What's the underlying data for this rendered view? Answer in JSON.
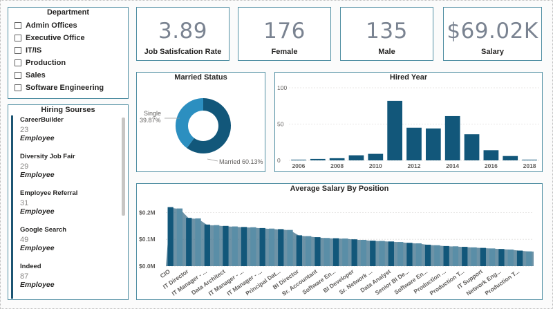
{
  "department": {
    "title": "Department",
    "items": [
      "Admin Offices",
      "Executive Office",
      "IT/IS",
      "Production",
      "Sales",
      "Software Engineering"
    ]
  },
  "hiring_sources": {
    "title": "Hiring Sourses",
    "items": [
      {
        "name": "CareerBuilder",
        "count": "23",
        "sub": "Employee"
      },
      {
        "name": "Diversity Job Fair",
        "count": "29",
        "sub": "Employee"
      },
      {
        "name": "Employee Referral",
        "count": "31",
        "sub": "Employee"
      },
      {
        "name": "Google Search",
        "count": "49",
        "sub": "Employee"
      },
      {
        "name": "Indeed",
        "count": "87",
        "sub": "Employee"
      }
    ]
  },
  "kpis": [
    {
      "value": "3.89",
      "label": "Job Satisfcation Rate"
    },
    {
      "value": "176",
      "label": "Female"
    },
    {
      "value": "135",
      "label": "Male"
    },
    {
      "value": "$69.02K",
      "label": "Salary"
    }
  ],
  "colors": {
    "dark": "#12577a",
    "light": "#2c8fc0",
    "bar_light": "#5a8ea7",
    "area": "#3c6f89",
    "border": "#4f8ea2"
  },
  "chart_data": [
    {
      "type": "pie",
      "title": "Married Status",
      "categories": [
        "Married",
        "Single"
      ],
      "values": [
        60.13,
        39.87
      ],
      "labels": [
        "Married 60.13%",
        "Single",
        "39.87%"
      ]
    },
    {
      "type": "bar",
      "title": "Hired Year",
      "categories": [
        "2006",
        "2007",
        "2008",
        "2009",
        "2010",
        "2011",
        "2012",
        "2013",
        "2014",
        "2015",
        "2016",
        "2017",
        "2018"
      ],
      "values": [
        1,
        2,
        3,
        7,
        9,
        82,
        45,
        44,
        61,
        36,
        14,
        6,
        1
      ],
      "x_tick_labels": [
        "2006",
        "2008",
        "2010",
        "2012",
        "2014",
        "2016",
        "2018"
      ],
      "y_tick_labels": [
        "0",
        "50",
        "100"
      ],
      "ylim": [
        0,
        100
      ]
    },
    {
      "type": "bar",
      "title": "Average Salary By Position",
      "categories": [
        "CIO",
        "",
        "IT Director",
        "",
        "IT Manager - ...",
        "",
        "Data Architect",
        "",
        "IT Manager - ...",
        "",
        "IT Manager - ...",
        "",
        "Principal Dat...",
        "",
        "BI Director",
        "",
        "Sr. Accountant",
        "",
        "Software En...",
        "",
        "BI Developer",
        "",
        "Sr. Network ...",
        "",
        "Data Analyst",
        "",
        "Senior BI De...",
        "",
        "Software En...",
        "",
        "Production ...",
        "",
        "Production T...",
        "",
        "IT Support",
        "",
        "Network Eng...",
        "",
        "Production T...",
        ""
      ],
      "values": [
        0.22,
        0.215,
        0.18,
        0.178,
        0.155,
        0.153,
        0.15,
        0.148,
        0.146,
        0.145,
        0.142,
        0.14,
        0.138,
        0.135,
        0.115,
        0.112,
        0.108,
        0.105,
        0.104,
        0.103,
        0.1,
        0.098,
        0.095,
        0.094,
        0.092,
        0.09,
        0.087,
        0.085,
        0.08,
        0.078,
        0.075,
        0.074,
        0.072,
        0.07,
        0.068,
        0.066,
        0.064,
        0.062,
        0.058,
        0.055
      ],
      "series_trend": "average salary area trend",
      "y_tick_labels": [
        "$0.0M",
        "$0.1M",
        "$0.2M"
      ],
      "ylabel": "",
      "ylim": [
        0,
        0.25
      ]
    }
  ]
}
